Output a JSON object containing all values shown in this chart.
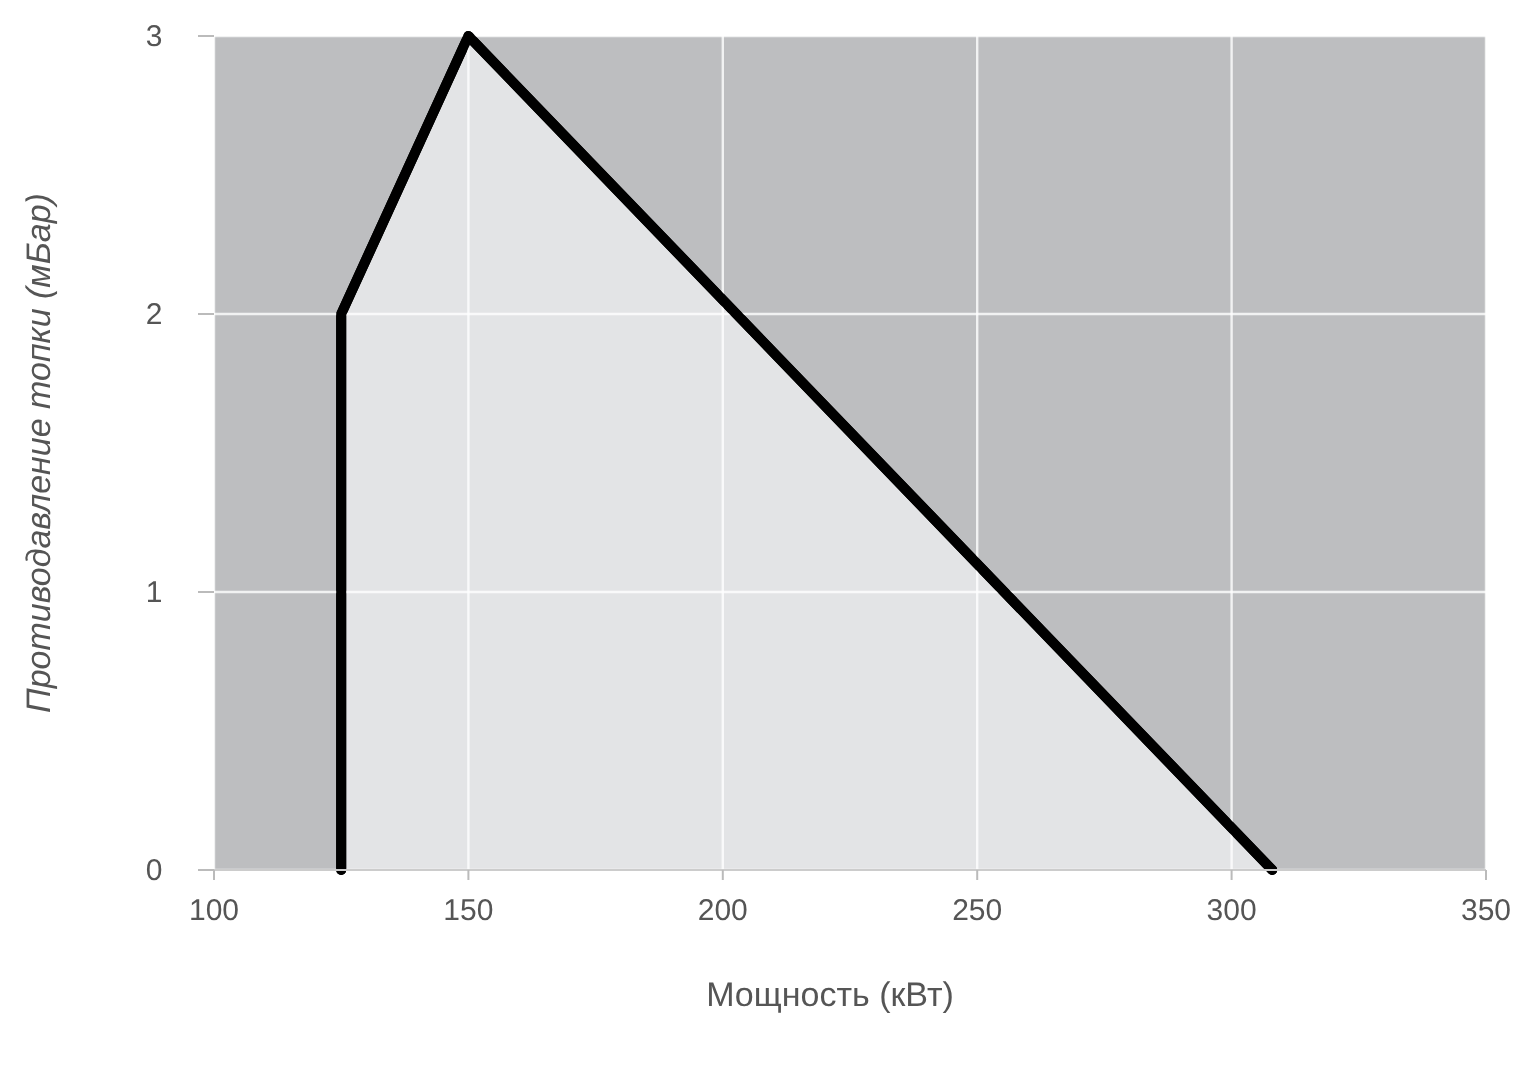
{
  "chart_data": {
    "type": "area",
    "xlabel": "Мощность (кВт)",
    "ylabel": "Противодавление топки (мБар)",
    "x": [
      125,
      125,
      150,
      308
    ],
    "series": [
      {
        "color": "#000000",
        "values": [
          0,
          2,
          3,
          0
        ]
      }
    ],
    "xlim": [
      100,
      350
    ],
    "xticks": [
      100,
      150,
      200,
      250,
      300,
      350
    ],
    "ylim": [
      0,
      3
    ],
    "yticks": [
      0,
      1,
      2,
      3
    ],
    "grid": true,
    "marker": "none",
    "line_style": "solid"
  }
}
